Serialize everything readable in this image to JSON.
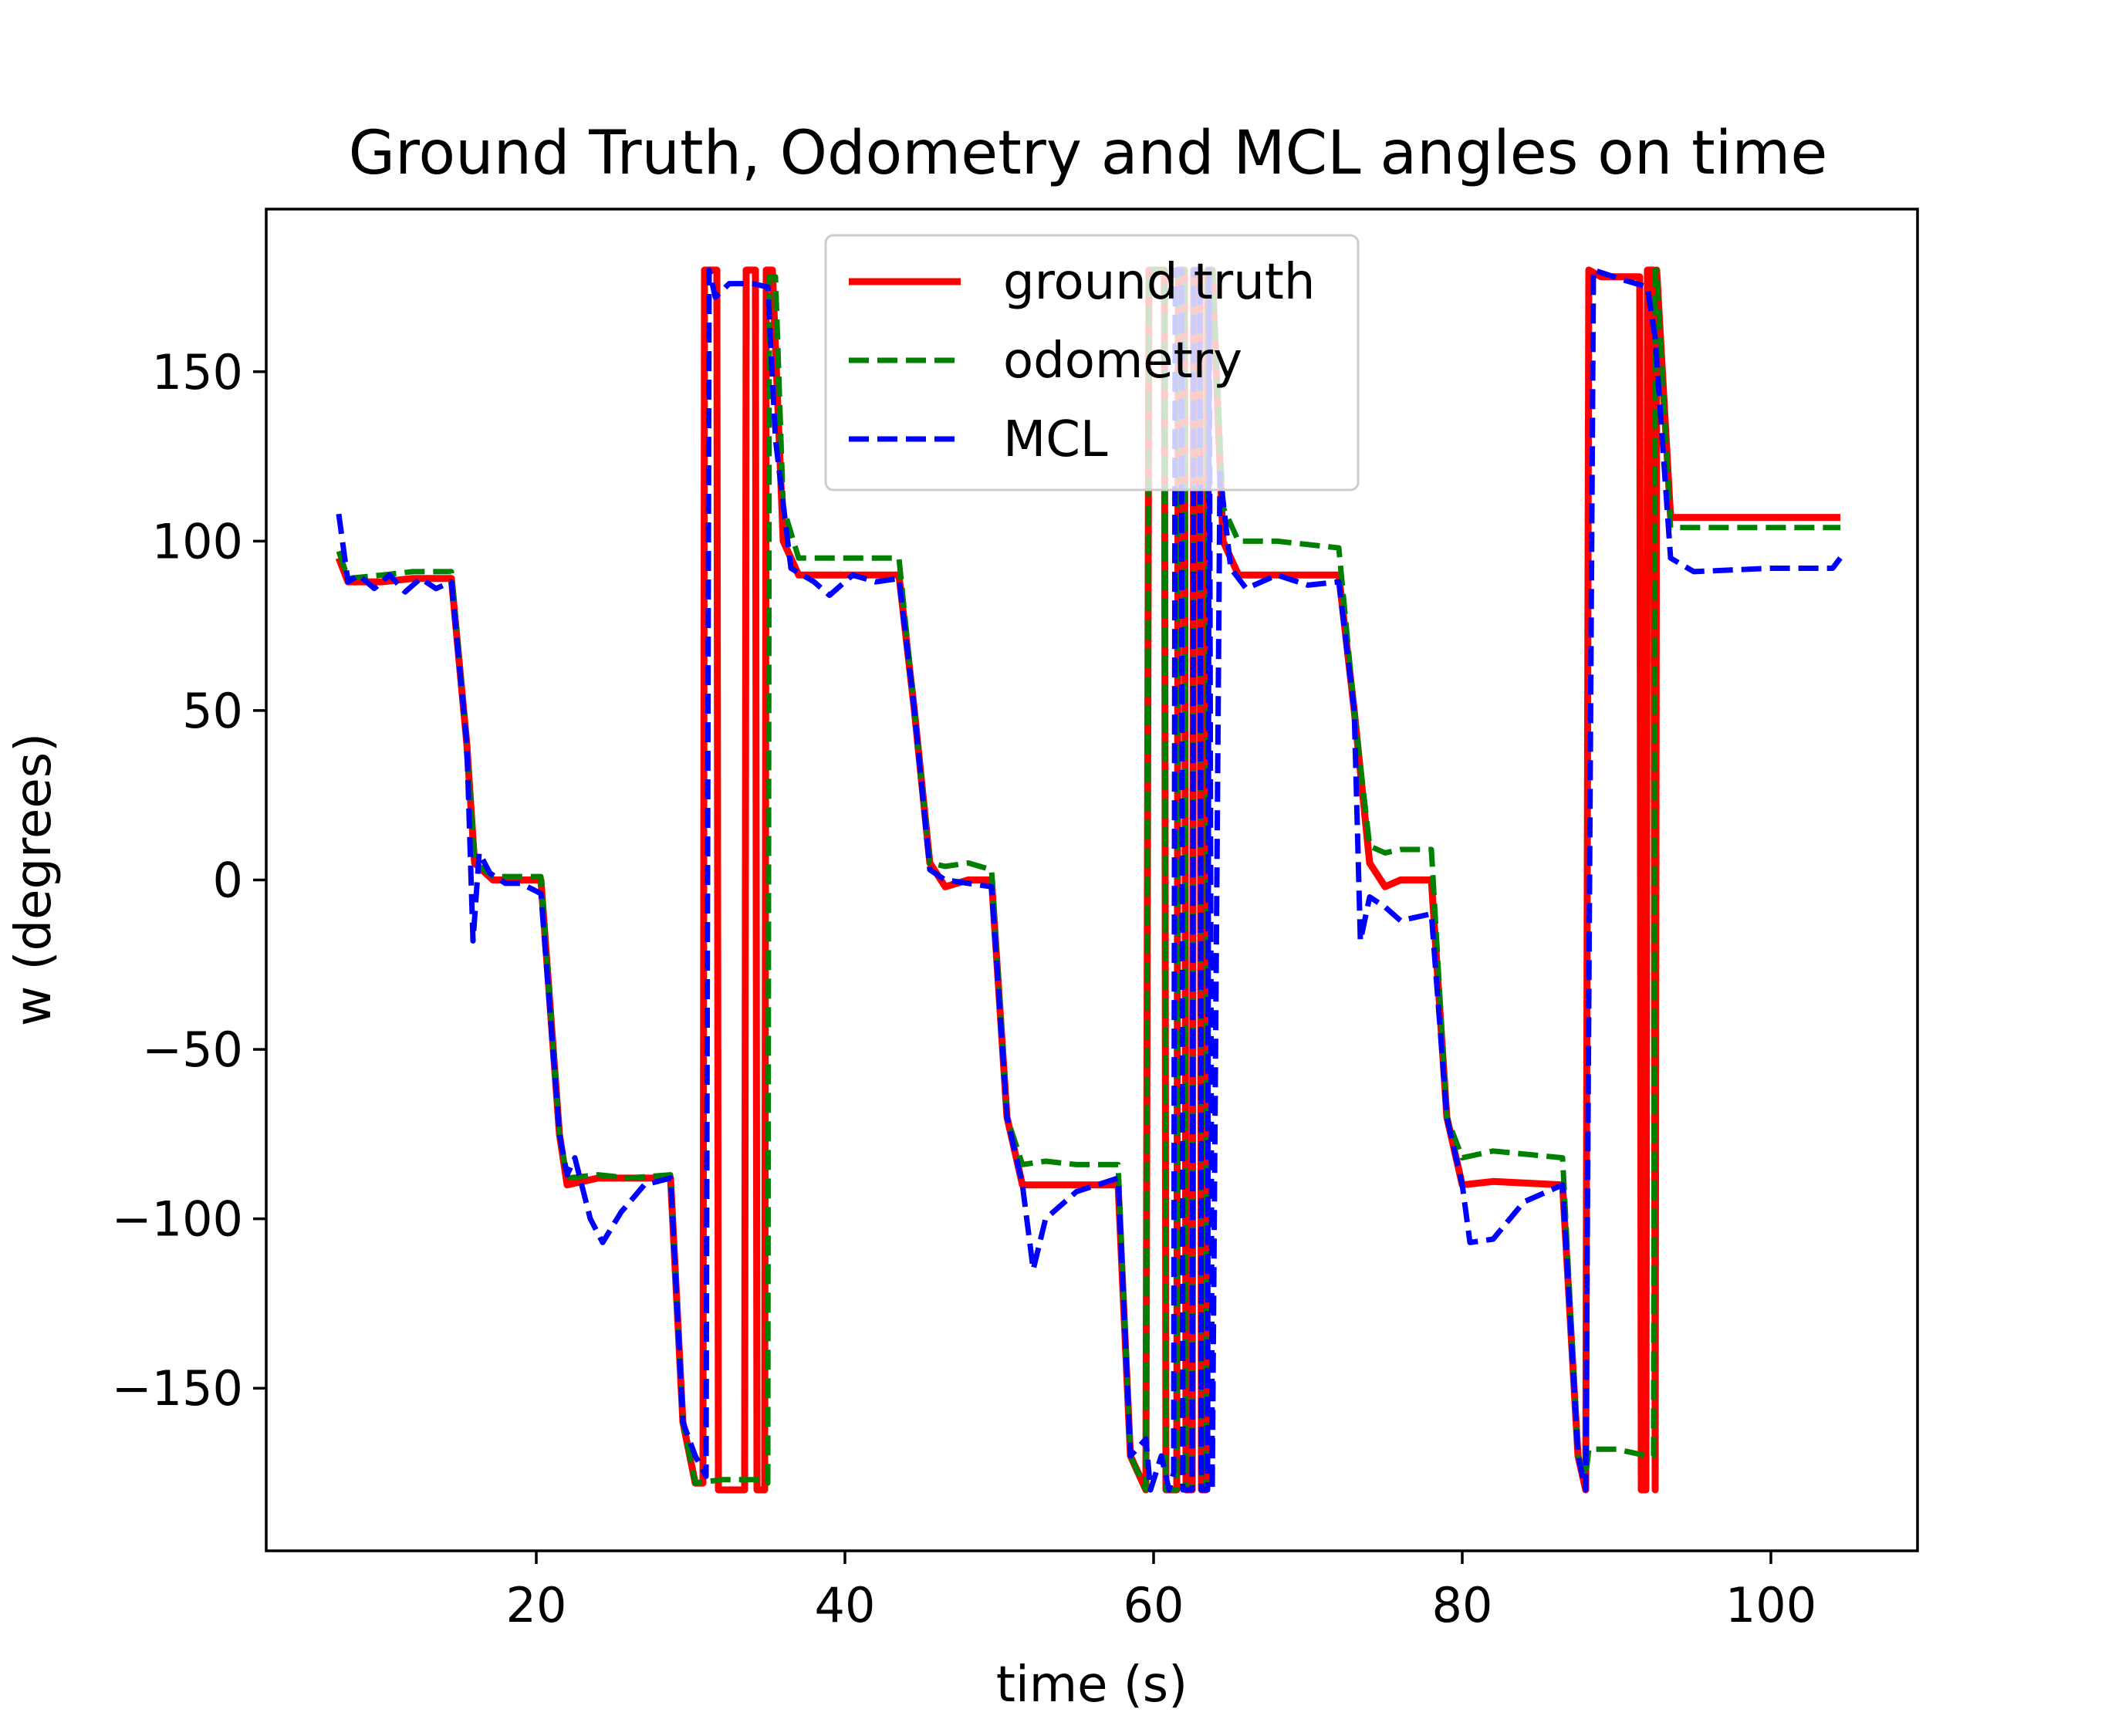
{
  "chart_data": {
    "type": "line",
    "title": "Ground Truth, Odometry and MCL angles on time",
    "xlabel": "time (s)",
    "ylabel": "w (degrees)",
    "xlim": [
      2.5,
      109.5
    ],
    "ylim": [
      -198,
      198
    ],
    "xticks": [
      20,
      40,
      60,
      80,
      100
    ],
    "yticks": [
      -150,
      -100,
      -50,
      0,
      50,
      100,
      150
    ],
    "grid": false,
    "legend_position": "top-center",
    "series": [
      {
        "name": "ground truth",
        "color": "#ff0000",
        "dash": "solid",
        "points": [
          [
            7.2,
            95
          ],
          [
            7.8,
            88
          ],
          [
            10,
            88
          ],
          [
            12,
            89
          ],
          [
            14.5,
            89
          ],
          [
            15.5,
            40
          ],
          [
            16,
            5
          ],
          [
            17.2,
            0
          ],
          [
            19,
            0
          ],
          [
            20.3,
            0
          ],
          [
            21.5,
            -75
          ],
          [
            22,
            -90
          ],
          [
            24,
            -88
          ],
          [
            26,
            -88
          ],
          [
            28.7,
            -88
          ],
          [
            29.5,
            -160
          ],
          [
            30.3,
            -178
          ],
          [
            30.8,
            -178
          ],
          [
            30.9,
            180
          ],
          [
            31.7,
            180
          ],
          [
            31.8,
            -180
          ],
          [
            33.5,
            -180
          ],
          [
            33.6,
            180
          ],
          [
            34.2,
            180
          ],
          [
            34.3,
            -180
          ],
          [
            34.8,
            -180
          ],
          [
            34.9,
            180
          ],
          [
            35.3,
            180
          ],
          [
            36,
            100
          ],
          [
            37,
            90
          ],
          [
            40,
            90
          ],
          [
            43.5,
            90
          ],
          [
            44.5,
            50
          ],
          [
            45.5,
            5
          ],
          [
            46.5,
            -2
          ],
          [
            48,
            0
          ],
          [
            49.5,
            0
          ],
          [
            50.5,
            -70
          ],
          [
            51.5,
            -90
          ],
          [
            53,
            -90
          ],
          [
            55,
            -90
          ],
          [
            57.7,
            -90
          ],
          [
            58.5,
            -170
          ],
          [
            59.5,
            -180
          ],
          [
            59.7,
            180
          ],
          [
            60.7,
            180
          ],
          [
            60.8,
            -180
          ],
          [
            61.5,
            -180
          ],
          [
            61.6,
            180
          ],
          [
            62,
            180
          ],
          [
            62.1,
            -180
          ],
          [
            62.5,
            -180
          ],
          [
            62.6,
            180
          ],
          [
            63,
            180
          ],
          [
            63.1,
            -180
          ],
          [
            63.4,
            -180
          ],
          [
            63.5,
            180
          ],
          [
            63.8,
            180
          ],
          [
            64.5,
            100
          ],
          [
            65.5,
            90
          ],
          [
            68,
            90
          ],
          [
            72,
            90
          ],
          [
            73,
            50
          ],
          [
            74,
            5
          ],
          [
            75,
            -2
          ],
          [
            76,
            0
          ],
          [
            78,
            0
          ],
          [
            79,
            -70
          ],
          [
            80,
            -90
          ],
          [
            82,
            -89
          ],
          [
            86.5,
            -90
          ],
          [
            87.5,
            -170
          ],
          [
            88,
            -180
          ],
          [
            88.2,
            180
          ],
          [
            89,
            178
          ],
          [
            91.5,
            178
          ],
          [
            91.6,
            -180
          ],
          [
            91.9,
            -180
          ],
          [
            92,
            180
          ],
          [
            92.4,
            180
          ],
          [
            92.5,
            -180
          ],
          [
            92.6,
            180
          ],
          [
            93.5,
            107
          ],
          [
            104.5,
            107
          ]
        ]
      },
      {
        "name": "odometry",
        "color": "#007f00",
        "dash": "dashed",
        "points": [
          [
            7.2,
            97
          ],
          [
            7.8,
            89
          ],
          [
            10,
            90
          ],
          [
            12,
            91
          ],
          [
            14.5,
            91
          ],
          [
            15.5,
            40
          ],
          [
            16,
            5
          ],
          [
            17.2,
            1
          ],
          [
            19,
            1
          ],
          [
            20.3,
            1
          ],
          [
            21.5,
            -75
          ],
          [
            22,
            -88
          ],
          [
            24,
            -87
          ],
          [
            26,
            -88
          ],
          [
            28.7,
            -87
          ],
          [
            29.5,
            -160
          ],
          [
            30.3,
            -178
          ],
          [
            32,
            -177
          ],
          [
            34.5,
            -177
          ],
          [
            35,
            -178
          ],
          [
            35.1,
            178
          ],
          [
            35.5,
            178
          ],
          [
            36,
            110
          ],
          [
            37,
            95
          ],
          [
            40,
            95
          ],
          [
            43.5,
            95
          ],
          [
            44.5,
            50
          ],
          [
            45.5,
            5
          ],
          [
            46.5,
            4
          ],
          [
            48,
            5
          ],
          [
            49.5,
            3
          ],
          [
            50.5,
            -70
          ],
          [
            51.5,
            -84
          ],
          [
            53,
            -83
          ],
          [
            55,
            -84
          ],
          [
            57.7,
            -84
          ],
          [
            58.5,
            -170
          ],
          [
            59.5,
            -180
          ],
          [
            59.7,
            180
          ],
          [
            60.7,
            180
          ],
          [
            60.8,
            -180
          ],
          [
            61.5,
            -180
          ],
          [
            61.6,
            180
          ],
          [
            62,
            180
          ],
          [
            62.1,
            -180
          ],
          [
            62.5,
            -180
          ],
          [
            62.6,
            180
          ],
          [
            63,
            180
          ],
          [
            63.1,
            -180
          ],
          [
            63.4,
            -180
          ],
          [
            63.5,
            180
          ],
          [
            63.8,
            180
          ],
          [
            64.5,
            110
          ],
          [
            65.5,
            100
          ],
          [
            68,
            100
          ],
          [
            72,
            98
          ],
          [
            73,
            50
          ],
          [
            74,
            10
          ],
          [
            75,
            8
          ],
          [
            76,
            9
          ],
          [
            78,
            9
          ],
          [
            79,
            -70
          ],
          [
            80,
            -82
          ],
          [
            82,
            -80
          ],
          [
            86.5,
            -82
          ],
          [
            87.5,
            -170
          ],
          [
            88,
            -176
          ],
          [
            88.2,
            -168
          ],
          [
            90,
            -168
          ],
          [
            92,
            -170
          ],
          [
            92.4,
            -170
          ],
          [
            92.5,
            180
          ],
          [
            92.6,
            180
          ],
          [
            93.5,
            104
          ],
          [
            104.5,
            104
          ]
        ]
      },
      {
        "name": "MCL",
        "color": "#0000ff",
        "dash": "dashed",
        "points": [
          [
            7.2,
            108
          ],
          [
            7.8,
            88
          ],
          [
            8.5,
            90
          ],
          [
            9.5,
            86
          ],
          [
            10.5,
            90
          ],
          [
            11.5,
            85
          ],
          [
            12.5,
            89
          ],
          [
            13.5,
            86
          ],
          [
            14.5,
            88
          ],
          [
            15.5,
            40
          ],
          [
            15.9,
            -18
          ],
          [
            16.3,
            8
          ],
          [
            17,
            2
          ],
          [
            18,
            -1
          ],
          [
            19,
            -1
          ],
          [
            20.3,
            -4
          ],
          [
            21.5,
            -75
          ],
          [
            22,
            -87
          ],
          [
            22.5,
            -82
          ],
          [
            23.5,
            -100
          ],
          [
            24.3,
            -107
          ],
          [
            25.5,
            -98
          ],
          [
            27,
            -90
          ],
          [
            28.7,
            -88
          ],
          [
            29.5,
            -160
          ],
          [
            30.3,
            -170
          ],
          [
            31,
            -176
          ],
          [
            31.2,
            180
          ],
          [
            31.6,
            172
          ],
          [
            32.5,
            176
          ],
          [
            34,
            176
          ],
          [
            35,
            175
          ],
          [
            35.5,
            130
          ],
          [
            36.5,
            92
          ],
          [
            38,
            88
          ],
          [
            39,
            84
          ],
          [
            40.5,
            90
          ],
          [
            42,
            88
          ],
          [
            43.5,
            89
          ],
          [
            44.5,
            50
          ],
          [
            45.5,
            3
          ],
          [
            46.5,
            0
          ],
          [
            48,
            -1
          ],
          [
            49.5,
            -2
          ],
          [
            50.5,
            -70
          ],
          [
            51.5,
            -90
          ],
          [
            52.2,
            -115
          ],
          [
            53,
            -100
          ],
          [
            55,
            -92
          ],
          [
            57.7,
            -88
          ],
          [
            58.5,
            -170
          ],
          [
            59.5,
            -165
          ],
          [
            59.8,
            -180
          ],
          [
            60.5,
            -170
          ],
          [
            61,
            -180
          ],
          [
            61.3,
            -175
          ],
          [
            61.4,
            180
          ],
          [
            61.8,
            180
          ],
          [
            61.9,
            -180
          ],
          [
            62.5,
            -180
          ],
          [
            62.6,
            180
          ],
          [
            63,
            180
          ],
          [
            63.1,
            -180
          ],
          [
            63.5,
            -180
          ],
          [
            63.6,
            180
          ],
          [
            63.8,
            -180
          ],
          [
            64.3,
            120
          ],
          [
            65,
            92
          ],
          [
            66,
            86
          ],
          [
            68,
            90
          ],
          [
            70,
            87
          ],
          [
            72,
            88
          ],
          [
            73,
            50
          ],
          [
            73.4,
            -18
          ],
          [
            74,
            -5
          ],
          [
            75,
            -8
          ],
          [
            76,
            -12
          ],
          [
            78,
            -10
          ],
          [
            79,
            -70
          ],
          [
            80,
            -90
          ],
          [
            80.5,
            -107
          ],
          [
            82,
            -106
          ],
          [
            84,
            -95
          ],
          [
            86.5,
            -90
          ],
          [
            87.5,
            -170
          ],
          [
            88,
            -180
          ],
          [
            88.5,
            180
          ],
          [
            90.5,
            177
          ],
          [
            92,
            175
          ],
          [
            92.5,
            160
          ],
          [
            93.5,
            95
          ],
          [
            95,
            91
          ],
          [
            100,
            92
          ],
          [
            104,
            92
          ],
          [
            104.5,
            95
          ]
        ]
      }
    ]
  }
}
